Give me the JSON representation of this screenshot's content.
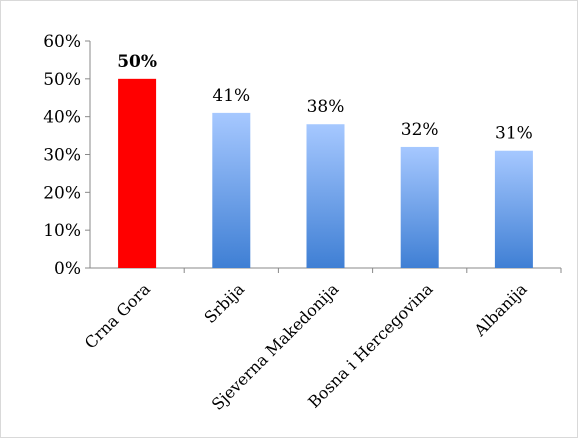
{
  "chart_data": {
    "type": "bar",
    "categories": [
      "Crna Gora",
      "Srbija",
      "Sjeverna Makedonija",
      "Bosna i Hercegovina",
      "Albanija"
    ],
    "values": [
      50,
      41,
      38,
      32,
      31
    ],
    "value_labels": [
      "50%",
      "41%",
      "38%",
      "32%",
      "31%"
    ],
    "highlight_index": 0,
    "ylim": [
      0,
      60
    ],
    "yticks": [
      0,
      10,
      20,
      30,
      40,
      50,
      60
    ],
    "ytick_labels": [
      "0%",
      "10%",
      "20%",
      "30%",
      "40%",
      "50%",
      "60%"
    ],
    "title": "",
    "xlabel": "",
    "ylabel": "",
    "grid": false,
    "colors": {
      "highlight": "#ff0000",
      "bar_top": "#a6c8ff",
      "bar_bottom": "#3f7fd4",
      "axis": "#888888"
    }
  }
}
